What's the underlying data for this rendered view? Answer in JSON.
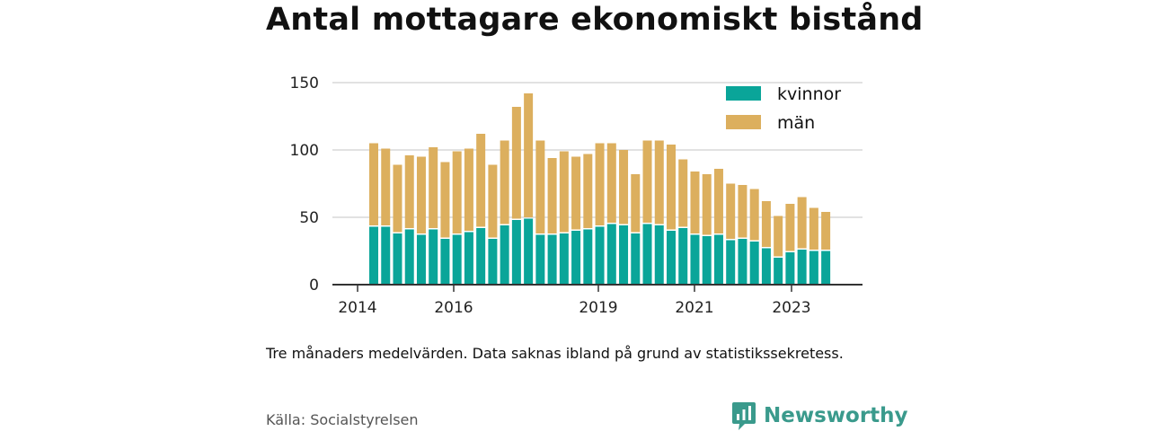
{
  "title": "Antal mottagare ekonomiskt bistånd",
  "note": "Tre månaders medelvärden. Data saknas ibland på grund av statistikssekretess.",
  "source": "Källa: Socialstyrelsen",
  "brand": {
    "name": "Newsworthy",
    "icon": "newsworthy-chart-bubble-icon",
    "color": "#3a9a8c"
  },
  "colors": {
    "kvinnor": "#0aa599",
    "man": "#dcaf5e",
    "axis": "#333333",
    "grid": "#d9d9d9"
  },
  "chart_data": {
    "type": "bar",
    "stacked": true,
    "title": "Antal mottagare ekonomiskt bistånd",
    "xlabel": "",
    "ylabel": "",
    "ylim": [
      0,
      150
    ],
    "yticks": [
      0,
      50,
      100,
      150
    ],
    "xticks": [
      "2014",
      "2016",
      "2019",
      "2021",
      "2023"
    ],
    "legend_position": "top-right",
    "grid": true,
    "series": [
      {
        "name": "kvinnor",
        "values": [
          43,
          43,
          38,
          41,
          37,
          41,
          34,
          37,
          39,
          42,
          34,
          44,
          48,
          49,
          37,
          37,
          38,
          40,
          41,
          43,
          45,
          44,
          38,
          45,
          44,
          40,
          42,
          37,
          36,
          37,
          33,
          34,
          32,
          27,
          20,
          24,
          26,
          25,
          25
        ]
      },
      {
        "name": "män",
        "values": [
          62,
          58,
          51,
          55,
          58,
          61,
          57,
          62,
          62,
          70,
          55,
          63,
          84,
          93,
          70,
          57,
          61,
          55,
          56,
          62,
          60,
          56,
          44,
          62,
          63,
          64,
          51,
          47,
          46,
          49,
          42,
          40,
          39,
          35,
          31,
          36,
          39,
          32,
          29
        ]
      }
    ]
  }
}
